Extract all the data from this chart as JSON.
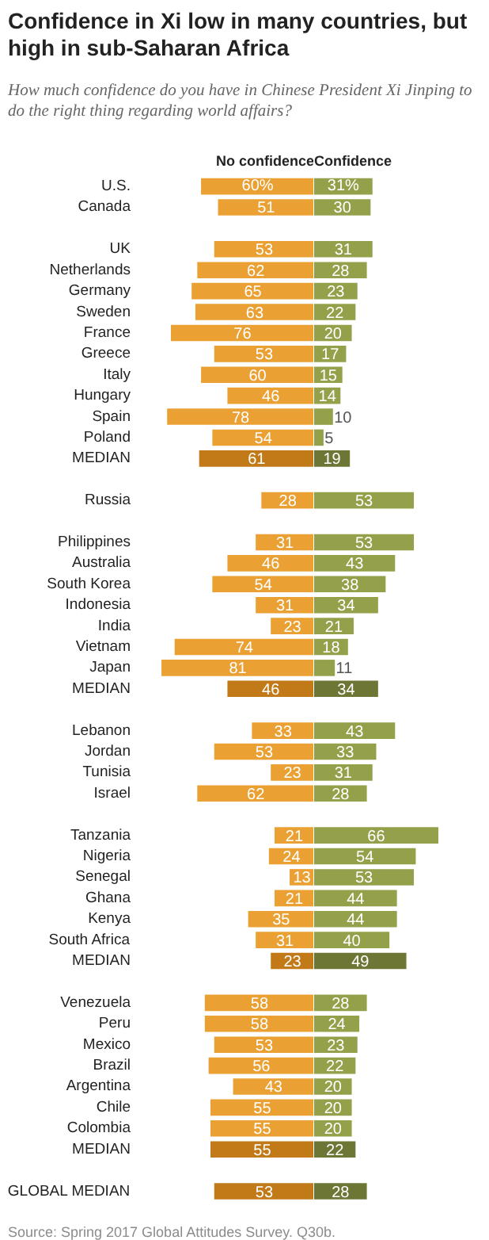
{
  "chart_data": [
    {
      "type": "bar",
      "orientation": "horizontal",
      "title": "Confidence in Xi low in many countries, but high in sub-Saharan Africa",
      "subtitle": "How much confidence do you have in Chinese President Xi Jinping to do the right thing regarding world affairs?",
      "categories": [
        "U.S.",
        "Canada",
        null,
        "UK",
        "Netherlands",
        "Germany",
        "Sweden",
        "France",
        "Greece",
        "Italy",
        "Hungary",
        "Spain",
        "Poland",
        "MEDIAN",
        null,
        "Russia",
        null,
        "Philippines",
        "Australia",
        "South Korea",
        "Indonesia",
        "India",
        "Vietnam",
        "Japan",
        "MEDIAN",
        null,
        "Lebanon",
        "Jordan",
        "Tunisia",
        "Israel",
        null,
        "Tanzania",
        "Nigeria",
        "Senegal",
        "Ghana",
        "Kenya",
        "South Africa",
        "MEDIAN",
        null,
        "Venezuela",
        "Peru",
        "Mexico",
        "Brazil",
        "Argentina",
        "Chile",
        "Colombia",
        "MEDIAN",
        null,
        "GLOBAL MEDIAN"
      ],
      "tick_labels": "y",
      "series": [
        {
          "name": "No confidence",
          "values": [
            60,
            51,
            null,
            53,
            62,
            65,
            63,
            76,
            53,
            60,
            46,
            78,
            54,
            61,
            null,
            28,
            null,
            31,
            46,
            54,
            31,
            23,
            74,
            81,
            46,
            null,
            33,
            53,
            23,
            62,
            null,
            21,
            24,
            13,
            21,
            35,
            31,
            23,
            null,
            58,
            58,
            53,
            56,
            43,
            55,
            55,
            55,
            null,
            53
          ],
          "value_labels": [
            "60%",
            "51",
            null,
            "53",
            "62",
            "65",
            "63",
            "76",
            "53",
            "60",
            "46",
            "78",
            "54",
            "61",
            null,
            "28",
            null,
            "31",
            "46",
            "54",
            "31",
            "23",
            "74",
            "81",
            "46",
            null,
            "33",
            "53",
            "23",
            "62",
            null,
            "21",
            "24",
            "13",
            "21",
            "35",
            "31",
            "23",
            null,
            "58",
            "58",
            "53",
            "56",
            "43",
            "55",
            "55",
            "55",
            null,
            "53"
          ],
          "colors": [
            "#eaa032",
            "#eaa032",
            null,
            "#eaa032",
            "#eaa032",
            "#eaa032",
            "#eaa032",
            "#eaa032",
            "#eaa032",
            "#eaa032",
            "#eaa032",
            "#eaa032",
            "#eaa032",
            "#c17a17",
            null,
            "#eaa032",
            null,
            "#eaa032",
            "#eaa032",
            "#eaa032",
            "#eaa032",
            "#eaa032",
            "#eaa032",
            "#eaa032",
            "#c17a17",
            null,
            "#eaa032",
            "#eaa032",
            "#eaa032",
            "#eaa032",
            null,
            "#eaa032",
            "#eaa032",
            "#eaa032",
            "#eaa032",
            "#eaa032",
            "#eaa032",
            "#c17a17",
            null,
            "#eaa032",
            "#eaa032",
            "#eaa032",
            "#eaa032",
            "#eaa032",
            "#eaa032",
            "#eaa032",
            "#c17a17",
            null,
            "#c17a17"
          ]
        }
      ],
      "annotations": [
        "Source: Spring 2017 Global Attitudes Survey. Q30b."
      ]
    },
    {
      "type": "bar",
      "orientation": "horizontal",
      "categories": [
        null,
        null,
        null,
        null,
        null,
        null,
        null,
        null,
        null,
        null,
        null,
        null,
        null,
        null,
        null,
        null,
        null,
        null,
        null,
        null,
        null,
        null,
        null,
        null,
        null,
        null,
        null,
        null,
        null,
        null,
        null,
        null,
        null,
        null,
        null,
        null,
        null,
        null,
        null,
        null,
        null,
        null,
        null,
        null,
        null,
        null,
        null,
        null,
        null
      ],
      "tick_labels": false,
      "series": [
        {
          "name": "Confidence",
          "values": [
            31,
            30,
            null,
            31,
            28,
            23,
            22,
            20,
            17,
            15,
            14,
            10,
            5,
            19,
            null,
            53,
            null,
            53,
            43,
            38,
            34,
            21,
            18,
            11,
            34,
            null,
            43,
            33,
            31,
            28,
            null,
            66,
            54,
            53,
            44,
            44,
            40,
            49,
            null,
            28,
            24,
            23,
            22,
            20,
            20,
            20,
            22,
            null,
            28
          ],
          "value_labels": [
            "31%",
            "30",
            null,
            "31",
            "28",
            "23",
            "22",
            "20",
            "17",
            "15",
            "14",
            "10",
            "5",
            "19",
            null,
            "53",
            null,
            "53",
            "43",
            "38",
            "34",
            "21",
            "18",
            "11",
            "34",
            null,
            "43",
            "33",
            "31",
            "28",
            null,
            "66",
            "54",
            "53",
            "44",
            "44",
            "40",
            "49",
            null,
            "28",
            "24",
            "23",
            "22",
            "20",
            "20",
            "20",
            "22",
            null,
            "28"
          ],
          "colors": [
            "#95a04a",
            "#95a04a",
            null,
            "#95a04a",
            "#95a04a",
            "#95a04a",
            "#95a04a",
            "#95a04a",
            "#95a04a",
            "#95a04a",
            "#95a04a",
            "#95a04a",
            "#95a04a",
            "#6e7635",
            null,
            "#95a04a",
            null,
            "#95a04a",
            "#95a04a",
            "#95a04a",
            "#95a04a",
            "#95a04a",
            "#95a04a",
            "#95a04a",
            "#6e7635",
            null,
            "#95a04a",
            "#95a04a",
            "#95a04a",
            "#95a04a",
            null,
            "#95a04a",
            "#95a04a",
            "#95a04a",
            "#95a04a",
            "#95a04a",
            "#95a04a",
            "#6e7635",
            null,
            "#95a04a",
            "#95a04a",
            "#95a04a",
            "#95a04a",
            "#95a04a",
            "#95a04a",
            "#95a04a",
            "#6e7635",
            null,
            "#6e7635"
          ]
        }
      ]
    }
  ]
}
